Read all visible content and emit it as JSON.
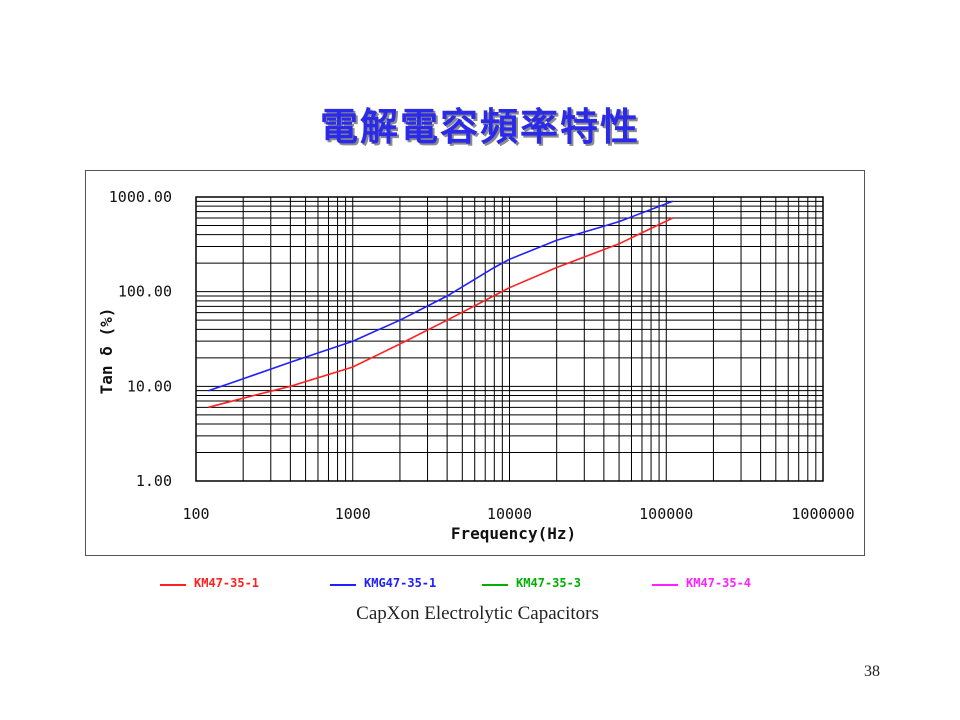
{
  "slide": {
    "title": "電解電容頻率特性",
    "page_number": "38"
  },
  "legend": [
    {
      "label": "KM47-35-1",
      "color": "#ff2020"
    },
    {
      "label": "KMG47-35-1",
      "color": "#2020ff"
    },
    {
      "label": "KM47-35-3",
      "color": "#00b000"
    },
    {
      "label": "KM47-35-4",
      "color": "#ff20ff"
    }
  ],
  "caption": "CapXon Electrolytic Capacitors",
  "chart_data": {
    "type": "line",
    "xlabel": "Frequency(Hz)",
    "ylabel": "Tan δ (%)",
    "x_scale": "log",
    "y_scale": "log",
    "xlim": [
      100,
      1000000
    ],
    "ylim": [
      1,
      1000
    ],
    "x_ticks": [
      "100",
      "1000",
      "10000",
      "100000",
      "1000000"
    ],
    "y_ticks": [
      "1.00",
      "10.00",
      "100.00",
      "1000.00"
    ],
    "grid": true,
    "series": [
      {
        "name": "KM47-35-1",
        "color": "#ff2020",
        "x": [
          120,
          200,
          400,
          1000,
          2000,
          4000,
          10000,
          20000,
          50000,
          110000
        ],
        "y": [
          6,
          7.5,
          10,
          16,
          28,
          50,
          110,
          180,
          320,
          600
        ]
      },
      {
        "name": "KMG47-35-1",
        "color": "#2020ff",
        "x": [
          120,
          200,
          400,
          1000,
          2000,
          4000,
          8000,
          10000,
          20000,
          50000,
          110000
        ],
        "y": [
          9,
          12,
          18,
          30,
          50,
          90,
          180,
          220,
          350,
          550,
          900
        ]
      }
    ]
  }
}
